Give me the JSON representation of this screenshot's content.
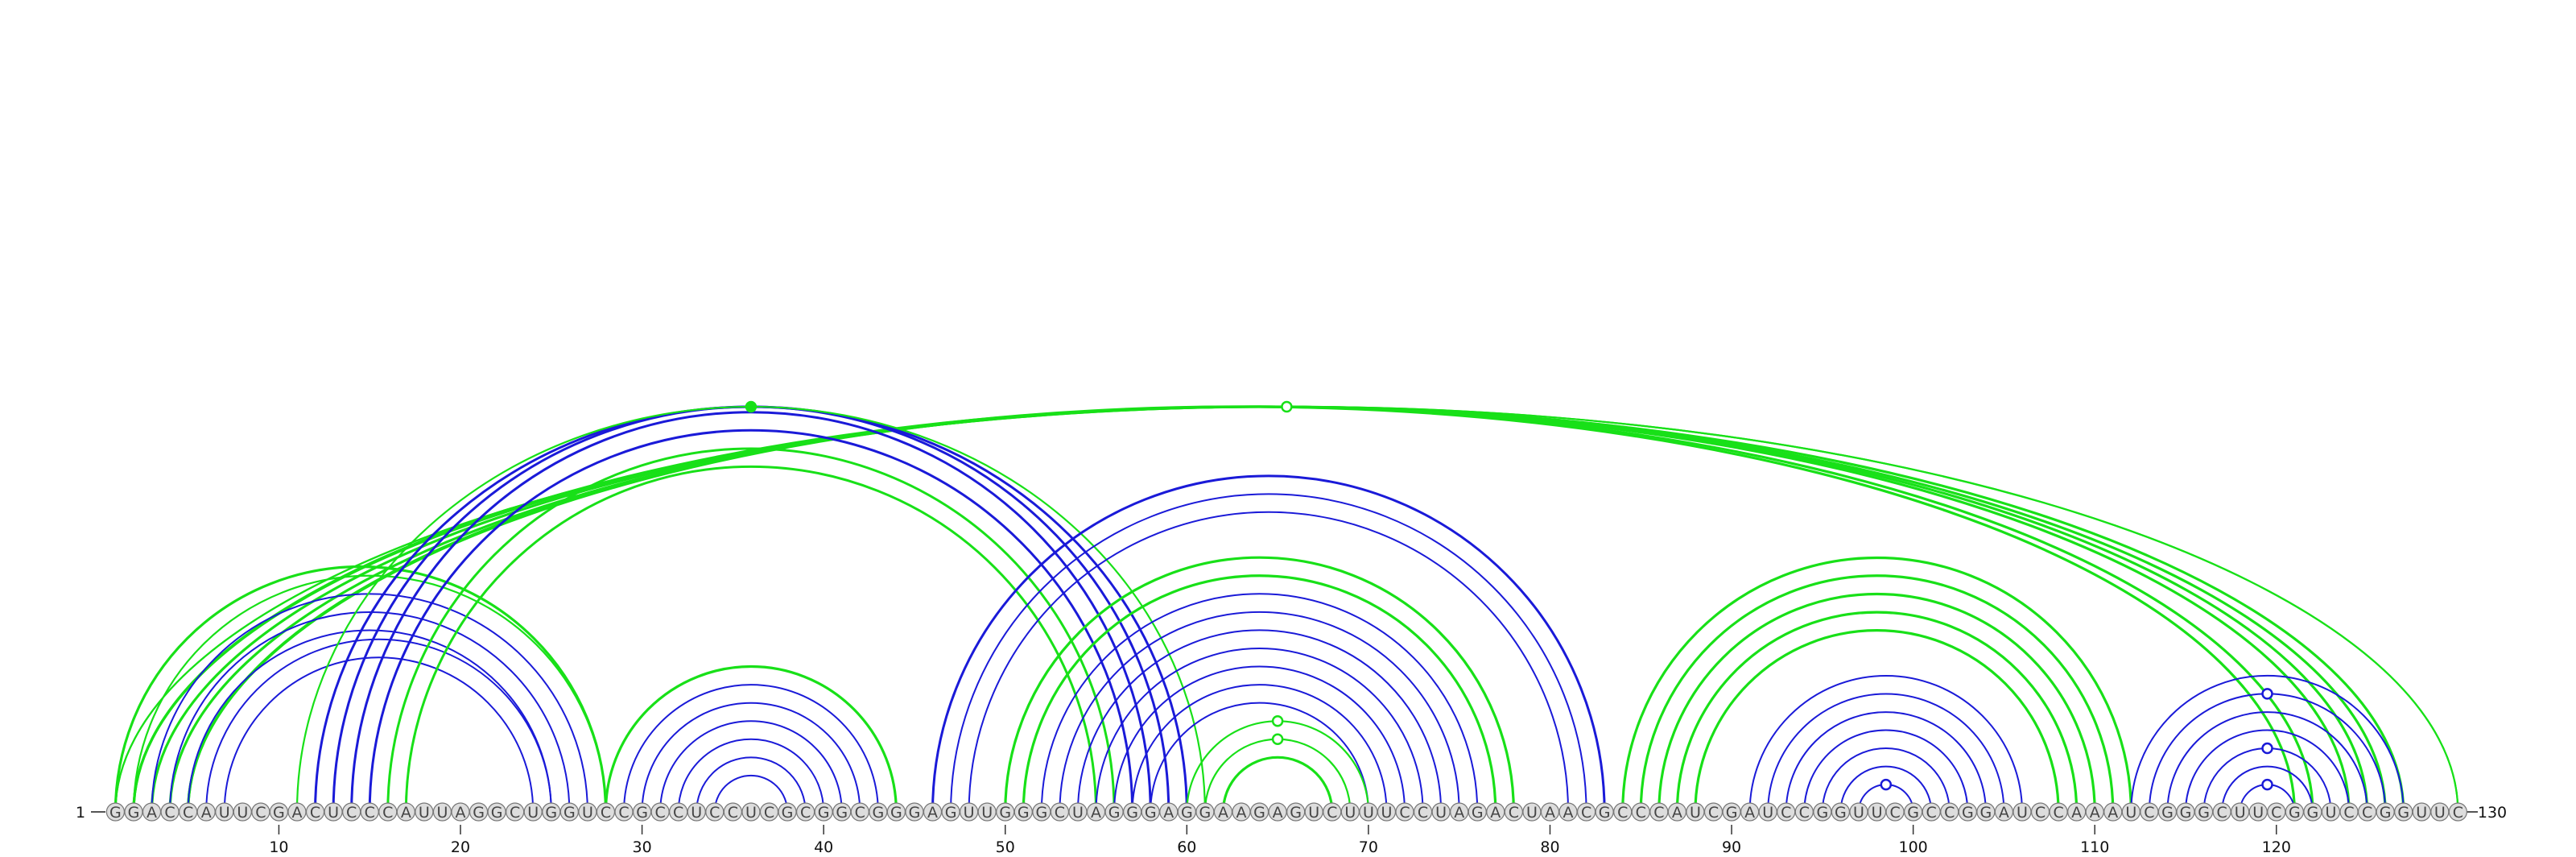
{
  "sequence": "GGACCAUUCGACUCCCAUUAGGCUGGUCCGCCUCCUCGCGGCGGGAGUUGGGCUAGGGAGGAAGAGUCUUUCCUAGACUAACGCCCAUCGAUCCGGUUCGCCGGAUCCAAAUCGGGCUUCGGUCCGGUUC",
  "labels": {
    "start": "1",
    "end": "130"
  },
  "ticks": [
    "10",
    "20",
    "30",
    "40",
    "50",
    "60",
    "70",
    "80",
    "90",
    "100",
    "110",
    "120"
  ],
  "colors": {
    "blue": "#1a1ad8",
    "green": "#18e018"
  },
  "arcs": [
    {
      "i": 1,
      "j": 130,
      "color": "green",
      "w": 2.2
    },
    {
      "i": 1,
      "j": 130,
      "color": "green",
      "w": 2.2
    },
    {
      "i": 2,
      "j": 127,
      "color": "green",
      "w": 3.2
    },
    {
      "i": 2,
      "j": 126,
      "color": "green",
      "w": 3.2
    },
    {
      "i": 3,
      "j": 125,
      "color": "green",
      "w": 3.2
    },
    {
      "i": 4,
      "j": 124,
      "color": "green",
      "w": 3.2
    },
    {
      "i": 5,
      "j": 122,
      "color": "green",
      "w": 3.2
    },
    {
      "i": 5,
      "j": 121,
      "color": "green",
      "w": 3.2
    },
    {
      "i": 1,
      "j": 28,
      "color": "green",
      "w": 3.2
    },
    {
      "i": 2,
      "j": 28,
      "color": "green",
      "w": 2.2
    },
    {
      "i": 3,
      "j": 27,
      "color": "blue",
      "w": 2
    },
    {
      "i": 4,
      "j": 26,
      "color": "blue",
      "w": 2
    },
    {
      "i": 5,
      "j": 25,
      "color": "blue",
      "w": 2
    },
    {
      "i": 6,
      "j": 25,
      "color": "blue",
      "w": 2
    },
    {
      "i": 7,
      "j": 24,
      "color": "blue",
      "w": 2
    },
    {
      "i": 12,
      "j": 60,
      "color": "blue",
      "w": 3
    },
    {
      "i": 13,
      "j": 59,
      "color": "blue",
      "w": 3
    },
    {
      "i": 14,
      "j": 58,
      "color": "blue",
      "w": 3
    },
    {
      "i": 15,
      "j": 57,
      "color": "blue",
      "w": 3
    },
    {
      "i": 16,
      "j": 56,
      "color": "green",
      "w": 3
    },
    {
      "i": 17,
      "j": 55,
      "color": "green",
      "w": 3
    },
    {
      "i": 11,
      "j": 61,
      "color": "green",
      "w": 2.2
    },
    {
      "i": 28,
      "j": 44,
      "color": "green",
      "w": 3.2
    },
    {
      "i": 29,
      "j": 43,
      "color": "blue",
      "w": 2
    },
    {
      "i": 30,
      "j": 42,
      "color": "blue",
      "w": 2
    },
    {
      "i": 31,
      "j": 41,
      "color": "blue",
      "w": 2
    },
    {
      "i": 32,
      "j": 40,
      "color": "blue",
      "w": 2
    },
    {
      "i": 33,
      "j": 39,
      "color": "blue",
      "w": 2
    },
    {
      "i": 34,
      "j": 38,
      "color": "blue",
      "w": 2
    },
    {
      "i": 46,
      "j": 83,
      "color": "blue",
      "w": 3
    },
    {
      "i": 47,
      "j": 82,
      "color": "blue",
      "w": 2
    },
    {
      "i": 48,
      "j": 81,
      "color": "blue",
      "w": 2
    },
    {
      "i": 50,
      "j": 78,
      "color": "green",
      "w": 3.2
    },
    {
      "i": 51,
      "j": 77,
      "color": "green",
      "w": 3.2
    },
    {
      "i": 52,
      "j": 76,
      "color": "blue",
      "w": 2
    },
    {
      "i": 53,
      "j": 75,
      "color": "blue",
      "w": 2
    },
    {
      "i": 54,
      "j": 74,
      "color": "blue",
      "w": 2
    },
    {
      "i": 55,
      "j": 73,
      "color": "blue",
      "w": 2
    },
    {
      "i": 56,
      "j": 72,
      "color": "blue",
      "w": 2
    },
    {
      "i": 57,
      "j": 71,
      "color": "blue",
      "w": 2
    },
    {
      "i": 58,
      "j": 70,
      "color": "blue",
      "w": 2
    },
    {
      "i": 60,
      "j": 70,
      "color": "green",
      "w": 2.2
    },
    {
      "i": 61,
      "j": 69,
      "color": "green",
      "w": 2.2
    },
    {
      "i": 62,
      "j": 68,
      "color": "green",
      "w": 3.2
    },
    {
      "i": 84,
      "j": 112,
      "color": "green",
      "w": 3.2
    },
    {
      "i": 85,
      "j": 111,
      "color": "green",
      "w": 3.2
    },
    {
      "i": 86,
      "j": 110,
      "color": "green",
      "w": 3.2
    },
    {
      "i": 87,
      "j": 109,
      "color": "green",
      "w": 3.2
    },
    {
      "i": 88,
      "j": 108,
      "color": "green",
      "w": 3.2
    },
    {
      "i": 91,
      "j": 106,
      "color": "blue",
      "w": 2
    },
    {
      "i": 92,
      "j": 105,
      "color": "blue",
      "w": 2
    },
    {
      "i": 93,
      "j": 104,
      "color": "blue",
      "w": 2
    },
    {
      "i": 94,
      "j": 103,
      "color": "blue",
      "w": 2
    },
    {
      "i": 95,
      "j": 102,
      "color": "blue",
      "w": 2
    },
    {
      "i": 96,
      "j": 101,
      "color": "blue",
      "w": 2
    },
    {
      "i": 97,
      "j": 100,
      "color": "blue",
      "w": 2
    },
    {
      "i": 112,
      "j": 127,
      "color": "blue",
      "w": 2
    },
    {
      "i": 113,
      "j": 126,
      "color": "blue",
      "w": 2
    },
    {
      "i": 114,
      "j": 125,
      "color": "blue",
      "w": 2
    },
    {
      "i": 115,
      "j": 124,
      "color": "blue",
      "w": 2
    },
    {
      "i": 116,
      "j": 123,
      "color": "blue",
      "w": 2
    },
    {
      "i": 117,
      "j": 122,
      "color": "blue",
      "w": 2
    },
    {
      "i": 118,
      "j": 121,
      "color": "blue",
      "w": 2
    }
  ],
  "markers": [
    {
      "i": 1,
      "j": 130,
      "color": "green",
      "filled": false
    },
    {
      "i": 11,
      "j": 61,
      "color": "green",
      "filled": true
    },
    {
      "i": 60,
      "j": 70,
      "color": "green",
      "filled": false
    },
    {
      "i": 61,
      "j": 69,
      "color": "green",
      "filled": false
    },
    {
      "i": 97,
      "j": 100,
      "color": "blue",
      "filled": false
    },
    {
      "i": 113,
      "j": 126,
      "color": "blue",
      "filled": false
    },
    {
      "i": 116,
      "j": 123,
      "color": "blue",
      "filled": false
    },
    {
      "i": 118,
      "j": 121,
      "color": "blue",
      "filled": false
    }
  ]
}
